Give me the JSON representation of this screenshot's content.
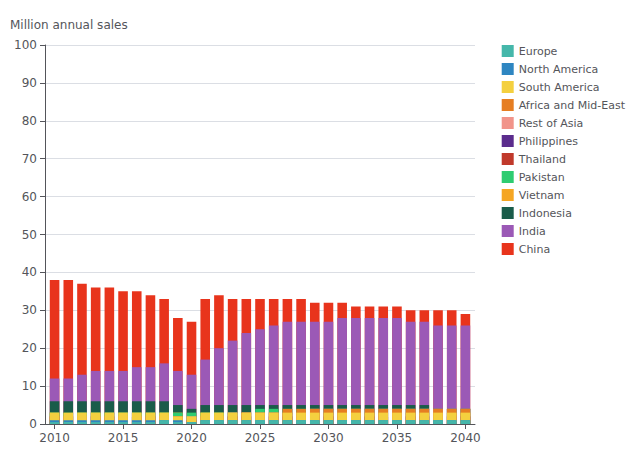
{
  "chart_data": {
    "type": "bar",
    "stacked": true,
    "grid": true,
    "legend": "right",
    "ylabel": "Million annual sales",
    "x": [
      2010,
      2011,
      2012,
      2013,
      2014,
      2015,
      2016,
      2017,
      2018,
      2019,
      2020,
      2021,
      2022,
      2023,
      2024,
      2025,
      2026,
      2027,
      2028,
      2029,
      2030,
      2031,
      2032,
      2033,
      2034,
      2035,
      2036,
      2037,
      2038,
      2039,
      2040
    ],
    "xlim": [
      2009.3,
      2040.7
    ],
    "xticks": [
      2010,
      2015,
      2020,
      2025,
      2030,
      2035,
      2040
    ],
    "ylim": [
      0,
      100
    ],
    "yticks": [
      0,
      10,
      20,
      30,
      40,
      50,
      60,
      70,
      80,
      90,
      100
    ],
    "series": [
      {
        "name": "China",
        "color": "#e8341c",
        "values": [
          38,
          38,
          37,
          36,
          36,
          35,
          35,
          34,
          33,
          28,
          27,
          33,
          34,
          33,
          33,
          33,
          33,
          33,
          33,
          32,
          32,
          32,
          31,
          31,
          31,
          31,
          30,
          30,
          30,
          30,
          29
        ]
      },
      {
        "name": "India",
        "color": "#9b59b6",
        "values": [
          12,
          12,
          13,
          14,
          14,
          14,
          15,
          15,
          16,
          14,
          13,
          17,
          20,
          22,
          24,
          25,
          26,
          27,
          27,
          27,
          27,
          28,
          28,
          28,
          28,
          28,
          27,
          27,
          26,
          26,
          26
        ]
      },
      {
        "name": "Indonesia",
        "color": "#1a5c4a",
        "values": [
          6,
          6,
          6,
          6,
          6,
          6,
          6,
          6,
          6,
          5,
          4,
          5,
          5,
          5,
          5,
          5,
          5,
          5,
          5,
          5,
          5,
          5,
          5,
          5,
          5,
          5,
          5,
          5,
          4,
          4,
          4
        ]
      },
      {
        "name": "Vietnam",
        "color": "#f5a623",
        "values": [
          3,
          3,
          3,
          3,
          3,
          3,
          3,
          3,
          3,
          3,
          2,
          3,
          3,
          3,
          3,
          3,
          3,
          3,
          3,
          3,
          3,
          3,
          3,
          3,
          3,
          3,
          3,
          3,
          3,
          3,
          3
        ]
      },
      {
        "name": "Pakistan",
        "color": "#2ecc71",
        "values": [
          3,
          3,
          3,
          3,
          3,
          3,
          3,
          3,
          3,
          3,
          3,
          3,
          3,
          3,
          3,
          4,
          4,
          4,
          4,
          4,
          4,
          4,
          4,
          4,
          4,
          4,
          4,
          4,
          4,
          4,
          4
        ]
      },
      {
        "name": "Thailand",
        "color": "#c0392b",
        "values": [
          2,
          2,
          2,
          2,
          2,
          2,
          2,
          2,
          2,
          1,
          1,
          2,
          2,
          2,
          2,
          2,
          2,
          2,
          2,
          2,
          2,
          2,
          2,
          2,
          2,
          2,
          2,
          2,
          2,
          2,
          2
        ]
      },
      {
        "name": "Philippines",
        "color": "#5b2c8d",
        "values": [
          1,
          1,
          1,
          1,
          1,
          1,
          1,
          1,
          1,
          1,
          1,
          1,
          1,
          2,
          2,
          2,
          2,
          2,
          2,
          2,
          2,
          2,
          2,
          2,
          2,
          2,
          2,
          2,
          2,
          2,
          2
        ]
      },
      {
        "name": "Rest of Asia",
        "color": "#f1948a",
        "values": [
          2,
          2,
          2,
          2,
          2,
          2,
          2,
          2,
          2,
          2,
          2,
          2,
          2,
          3,
          3,
          3,
          3,
          3,
          3,
          4,
          4,
          4,
          4,
          4,
          4,
          4,
          4,
          4,
          4,
          4,
          4
        ]
      },
      {
        "name": "Africa and Mid-East",
        "color": "#e67e22",
        "values": [
          2,
          2,
          2,
          2,
          2,
          2,
          2,
          2,
          2,
          2,
          1,
          2,
          2,
          2,
          3,
          3,
          3,
          4,
          4,
          4,
          4,
          4,
          4,
          4,
          4,
          4,
          4,
          4,
          4,
          4,
          4
        ]
      },
      {
        "name": "South America",
        "color": "#f4d03f",
        "values": [
          3,
          3,
          3,
          3,
          3,
          3,
          3,
          3,
          3,
          2,
          2,
          3,
          3,
          3,
          3,
          3,
          3,
          3,
          3,
          3,
          3,
          3,
          3,
          3,
          3,
          3,
          3,
          3,
          3,
          3,
          3
        ]
      },
      {
        "name": "North America",
        "color": "#2e86c1",
        "values": [
          1,
          1,
          1,
          1,
          1,
          1,
          1,
          1,
          1,
          1,
          0.5,
          1,
          1,
          1,
          1,
          1,
          1,
          1,
          1,
          1,
          1,
          1,
          1,
          1,
          1,
          1,
          1,
          1,
          1,
          1,
          1
        ]
      },
      {
        "name": "Europe",
        "color": "#45b7aa",
        "values": [
          0.5,
          0.5,
          0.5,
          0.5,
          0.5,
          0.5,
          0.5,
          0.5,
          1,
          0.5,
          0.5,
          1,
          1,
          1,
          1,
          1,
          1,
          1,
          1,
          1,
          1,
          1,
          1,
          1,
          1,
          1,
          1,
          1,
          1,
          1,
          1
        ]
      }
    ]
  }
}
